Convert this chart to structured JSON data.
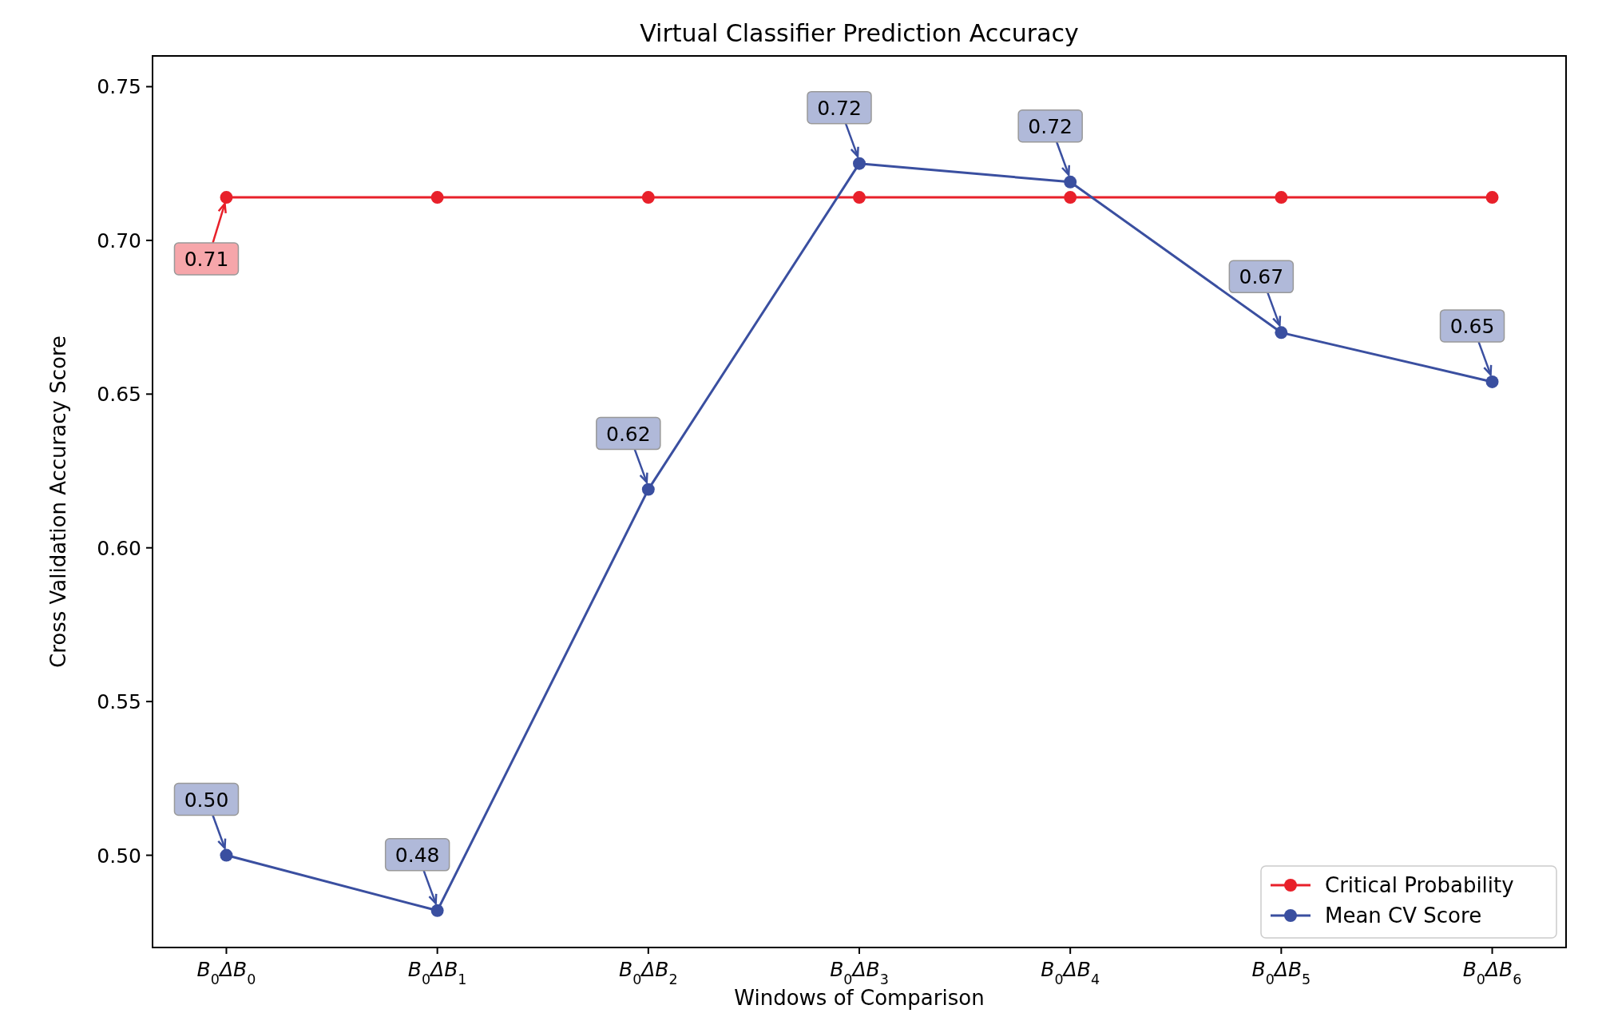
{
  "chart_data": {
    "type": "line",
    "title": "Virtual Classifier Prediction Accuracy",
    "xlabel": "Windows of Comparison",
    "ylabel": "Cross Validation Accuracy Score",
    "categories": [
      "B$_{0}$ΔB$_{0}$",
      "B$_{0}$ΔB$_{1}$",
      "B$_{0}$ΔB$_{2}$",
      "B$_{0}$ΔB$_{3}$",
      "B$_{0}$ΔB$_{4}$",
      "B$_{0}$ΔB$_{5}$",
      "B$_{0}$ΔB$_{6}$"
    ],
    "series": [
      {
        "name": "Critical Probability",
        "color": "#e8202a",
        "values": [
          0.714,
          0.714,
          0.714,
          0.714,
          0.714,
          0.714,
          0.714
        ],
        "value_labels": [
          "0.71",
          null,
          null,
          null,
          null,
          null,
          null
        ]
      },
      {
        "name": "Mean CV Score",
        "color": "#3a4fa0",
        "values": [
          0.5,
          0.482,
          0.619,
          0.725,
          0.719,
          0.67,
          0.654
        ],
        "value_labels": [
          "0.50",
          "0.48",
          "0.62",
          "0.72",
          "0.72",
          "0.67",
          "0.65"
        ]
      }
    ],
    "ylim": [
      0.47,
      0.76
    ],
    "yticks": [
      {
        "value": 0.5,
        "label": "0.50"
      },
      0.55,
      {
        "value": 0.6,
        "label": "0.60"
      },
      0.65,
      {
        "value": 0.7,
        "label": "0.70"
      },
      0.75
    ],
    "grid": false,
    "legend": "bottom right",
    "marker": "circle",
    "line_style": "solid"
  }
}
